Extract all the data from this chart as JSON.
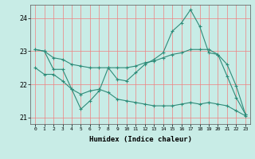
{
  "xlabel": "Humidex (Indice chaleur)",
  "xlim": [
    -0.5,
    23.5
  ],
  "ylim": [
    20.8,
    24.4
  ],
  "yticks": [
    21,
    22,
    23,
    24
  ],
  "xticks": [
    0,
    1,
    2,
    3,
    4,
    5,
    6,
    7,
    8,
    9,
    10,
    11,
    12,
    13,
    14,
    15,
    16,
    17,
    18,
    19,
    20,
    21,
    22,
    23
  ],
  "bg_color": "#c8ece6",
  "grid_color": "#f08080",
  "line_color": "#2e8b78",
  "line1_x": [
    0,
    1,
    2,
    3,
    4,
    5,
    6,
    7,
    8,
    9,
    10,
    11,
    12,
    13,
    14,
    15,
    16,
    17,
    18,
    19,
    20,
    21,
    22,
    23
  ],
  "line1_y": [
    23.05,
    23.0,
    22.45,
    22.45,
    21.85,
    21.25,
    21.5,
    21.8,
    22.5,
    22.15,
    22.1,
    22.35,
    22.6,
    22.75,
    22.95,
    23.6,
    23.85,
    24.25,
    23.75,
    22.95,
    22.9,
    22.25,
    21.6,
    21.1
  ],
  "line2_x": [
    0,
    1,
    2,
    3,
    4,
    5,
    6,
    7,
    8,
    9,
    10,
    11,
    12,
    13,
    14,
    15,
    16,
    17,
    18,
    19,
    20,
    21,
    22,
    23
  ],
  "line2_y": [
    23.05,
    23.0,
    22.8,
    22.75,
    22.6,
    22.55,
    22.5,
    22.5,
    22.5,
    22.5,
    22.5,
    22.55,
    22.65,
    22.7,
    22.8,
    22.9,
    22.95,
    23.05,
    23.05,
    23.05,
    22.9,
    22.6,
    21.95,
    21.1
  ],
  "line3_x": [
    0,
    1,
    2,
    3,
    4,
    5,
    6,
    7,
    8,
    9,
    10,
    11,
    12,
    13,
    14,
    15,
    16,
    17,
    18,
    19,
    20,
    21,
    22,
    23
  ],
  "line3_y": [
    22.5,
    22.3,
    22.3,
    22.1,
    21.85,
    21.7,
    21.8,
    21.85,
    21.75,
    21.55,
    21.5,
    21.45,
    21.4,
    21.35,
    21.35,
    21.35,
    21.4,
    21.45,
    21.4,
    21.45,
    21.4,
    21.35,
    21.2,
    21.05
  ]
}
